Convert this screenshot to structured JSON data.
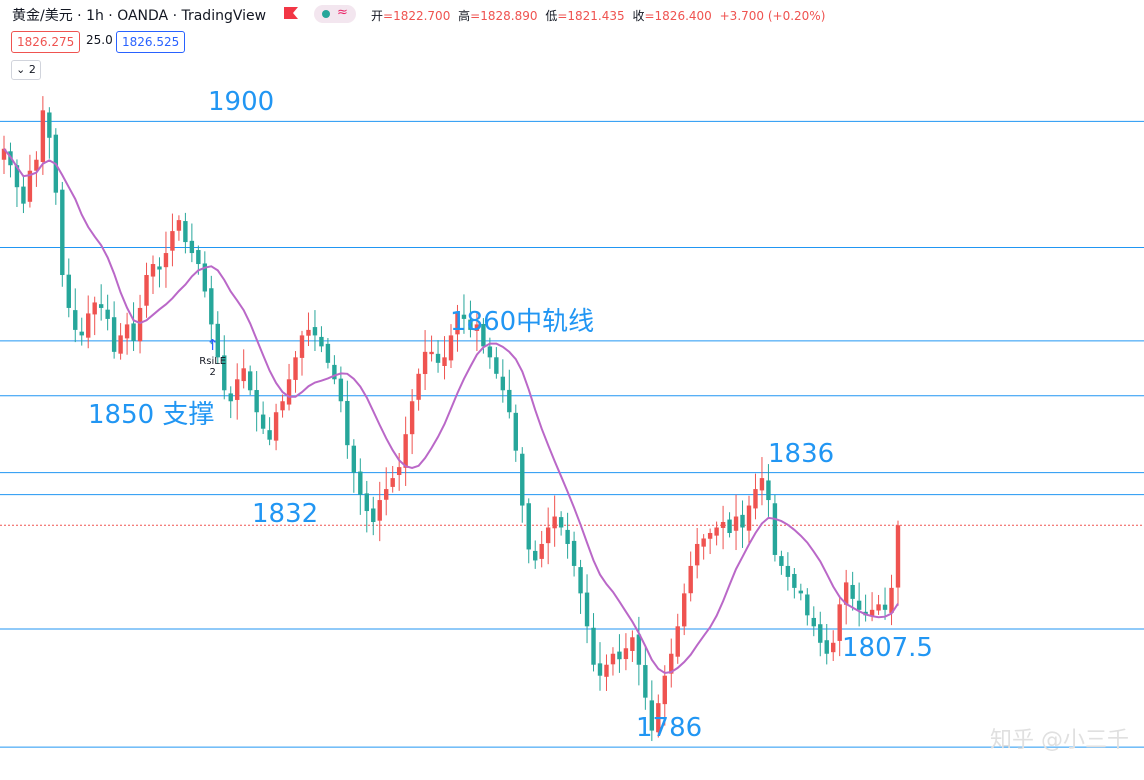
{
  "header": {
    "symbol": "黄金/美元",
    "interval": "1h",
    "broker": "OANDA",
    "platform": "TradingView",
    "title": "黄金/美元 · 1h · OANDA · TradingView",
    "wave_icon_glyph": "≈",
    "open_label": "开",
    "open_value": "=1822.700",
    "high_label": "高",
    "high_value": "=1828.890",
    "low_label": "低",
    "low_value": "=1821.435",
    "close_label": "收",
    "close_value": "=1826.400",
    "change": "+3.700 (+0.20%)"
  },
  "trade_panel": {
    "sell_price": "1826.275",
    "spread": "25.0",
    "buy_price": "1826.525"
  },
  "indicator_toggle": {
    "chevron_glyph": "⌄",
    "count": "2"
  },
  "strategy_signal": {
    "label": "RsiLE",
    "count": "2",
    "arrow_glyph": "↑",
    "date_index": 32
  },
  "watermark": "知乎 @小三千",
  "colors": {
    "up": "#ef5350",
    "down": "#26a69a",
    "ma": "#ba68c8",
    "level_line": "#2196f3",
    "level_text": "#2196f3",
    "current_price_line": "#ef5350"
  },
  "chart_data": {
    "type": "candlestick",
    "symbol": "XAUUSD",
    "interval": "1h",
    "ylim": [
      1780,
      1917
    ],
    "price_levels": [
      {
        "value": 1900,
        "label": "1900",
        "label_position": "left"
      },
      {
        "value": 1877,
        "label": "",
        "label_position": "none"
      },
      {
        "value": 1860,
        "label": "1860中轨线",
        "label_position": "center"
      },
      {
        "value": 1850,
        "label": "1850 支撑",
        "label_position": "left"
      },
      {
        "value": 1836,
        "label": "1836",
        "label_position": "right"
      },
      {
        "value": 1832,
        "label": "1832",
        "label_position": "left"
      },
      {
        "value": 1807.5,
        "label": "1807.5",
        "label_position": "right"
      },
      {
        "value": 1786,
        "label": "1786",
        "label_position": "center"
      }
    ],
    "current_price": 1826.4,
    "closes": [
      1895,
      1892,
      1888,
      1885,
      1891,
      1893,
      1902,
      1897,
      1887,
      1872,
      1866,
      1862,
      1861,
      1865,
      1867,
      1866,
      1864,
      1858,
      1861,
      1863,
      1860,
      1866,
      1872,
      1874,
      1873,
      1876,
      1880,
      1882,
      1878,
      1876,
      1874,
      1869,
      1863,
      1857,
      1851,
      1849,
      1853,
      1855,
      1851,
      1847,
      1844,
      1842,
      1847,
      1849,
      1853,
      1857,
      1861,
      1862,
      1861,
      1859,
      1856,
      1853,
      1849,
      1841,
      1836,
      1832,
      1829,
      1827,
      1831,
      1833,
      1835,
      1837,
      1843,
      1849,
      1854,
      1858,
      1858,
      1856,
      1857,
      1861,
      1865,
      1864,
      1862,
      1863,
      1859,
      1857,
      1854,
      1851,
      1847,
      1840,
      1830,
      1822,
      1820,
      1823,
      1826,
      1828,
      1826,
      1823,
      1819,
      1814,
      1808,
      1801,
      1799,
      1801,
      1803,
      1802,
      1804,
      1806,
      1801,
      1795,
      1789,
      1794,
      1799,
      1803,
      1808,
      1814,
      1819,
      1823,
      1824,
      1825,
      1826,
      1827,
      1825,
      1828,
      1826,
      1830,
      1833,
      1835,
      1831,
      1821,
      1819,
      1817,
      1815,
      1814,
      1810,
      1808,
      1805,
      1803,
      1805,
      1812,
      1816,
      1813,
      1811,
      1810,
      1811,
      1812,
      1811,
      1815,
      1826.4
    ]
  }
}
